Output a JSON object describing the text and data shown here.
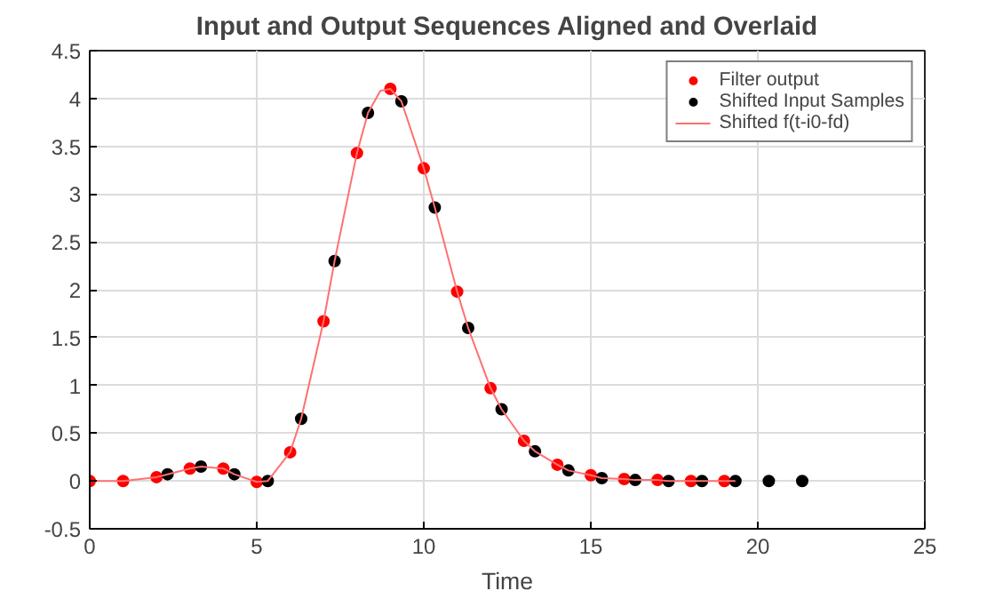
{
  "chart_data": {
    "type": "scatter",
    "title": "Input and Output Sequences Aligned and Overlaid",
    "xlabel": "Time",
    "xlim": [
      0,
      25
    ],
    "xticks": [
      0,
      5,
      10,
      15,
      20,
      25
    ],
    "ylim": [
      -0.5,
      4.5
    ],
    "yticks": [
      -0.5,
      0,
      0.5,
      1,
      1.5,
      2,
      2.5,
      3,
      3.5,
      4,
      4.5
    ],
    "grid": true,
    "legend": "top right",
    "marker": "circle",
    "series": [
      {
        "name": "Filter output",
        "color": "#ff0000",
        "x": [
          0,
          1,
          2,
          3,
          4,
          5,
          6,
          7,
          8,
          9,
          10,
          11,
          12,
          13,
          14,
          15,
          16,
          17,
          18,
          19
        ],
        "values": [
          0,
          0,
          0.04,
          0.13,
          0.13,
          -0.01,
          0.3,
          1.67,
          3.43,
          4.1,
          3.27,
          1.98,
          0.97,
          0.42,
          0.17,
          0.06,
          0.02,
          0.01,
          0,
          0
        ]
      },
      {
        "name": "Shifted Input Samples",
        "color": "#000000",
        "x": [
          2.33,
          3.33,
          4.33,
          5.33,
          6.33,
          7.33,
          8.33,
          9.33,
          10.33,
          11.33,
          12.33,
          13.33,
          14.33,
          15.33,
          16.33,
          17.33,
          18.33,
          19.33,
          20.33,
          21.33
        ],
        "values": [
          0.07,
          0.15,
          0.07,
          0,
          0.65,
          2.3,
          3.85,
          3.97,
          2.86,
          1.6,
          0.75,
          0.31,
          0.11,
          0.03,
          0.01,
          0,
          0,
          0,
          0,
          0
        ]
      },
      {
        "name": "Shifted f(t-i0-fd)",
        "color": "#ff7070",
        "type": "line",
        "marker": "none",
        "line_style": "solid",
        "x": [
          0,
          1,
          2,
          2.33,
          3,
          3.33,
          4,
          4.33,
          5,
          5.33,
          6,
          6.33,
          7,
          7.33,
          8,
          8.33,
          8.7,
          9,
          9.33,
          10,
          10.33,
          11,
          11.33,
          12,
          12.33,
          13,
          13.33,
          14,
          14.33,
          15,
          15.33,
          16,
          16.33,
          17,
          17.33,
          18,
          18.33,
          19,
          19.33
        ],
        "values": [
          0,
          0,
          0.04,
          0.07,
          0.13,
          0.15,
          0.13,
          0.07,
          -0.01,
          0,
          0.3,
          0.65,
          1.67,
          2.3,
          3.43,
          3.85,
          4.08,
          4.1,
          3.97,
          3.27,
          2.86,
          1.98,
          1.6,
          0.97,
          0.75,
          0.42,
          0.31,
          0.17,
          0.11,
          0.06,
          0.03,
          0.02,
          0.01,
          0.01,
          0,
          0,
          0,
          0,
          0
        ]
      }
    ]
  }
}
